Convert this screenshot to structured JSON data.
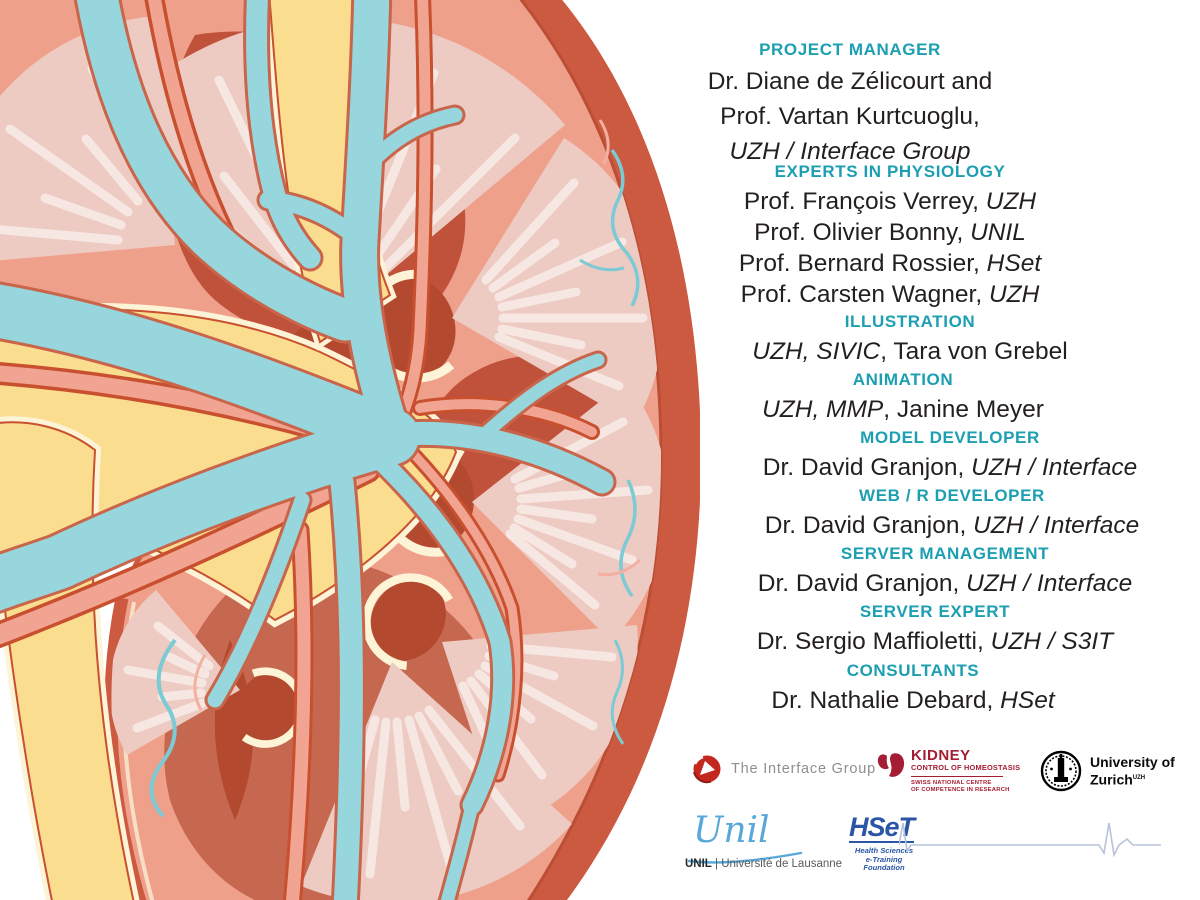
{
  "palette": {
    "heading_teal": "#1b9fb1",
    "body_text": "#231f20",
    "capsule_red": "#cb5a41",
    "cortex_salmon": "#efa08b",
    "pyramid_pink": "#edcbc3",
    "pelvis_yellow": "#fbdd90",
    "cream": "#fdf3d6",
    "vein_blue": "#96d6dc",
    "artery_salmon": "#f2a492",
    "artery_outline": "#c8502f",
    "nccr_crimson": "#a41d33",
    "hset_blue": "#2b55a5",
    "unil_blue": "#58a9d9"
  },
  "illustration": {
    "subject": "kidney-cross-section",
    "alt": "Anatomical illustration of a kidney in cross section with renal pelvis, pyramids, veins and arteries"
  },
  "credits": {
    "sections": [
      {
        "id": "project-manager",
        "heading": "PROJECT MANAGER",
        "lines": [
          [
            {
              "t": "Dr. Diane de Zélicourt and"
            }
          ],
          [
            {
              "t": "Prof. Vartan Kurtcuoglu,"
            }
          ],
          [
            {
              "t": "UZH / Interface Group",
              "i": true
            }
          ]
        ]
      },
      {
        "id": "experts-in-physiology",
        "heading": "EXPERTS IN PHYSIOLOGY",
        "lines": [
          [
            {
              "t": "Prof. François Verrey, "
            },
            {
              "t": "UZH",
              "i": true
            }
          ],
          [
            {
              "t": "Prof. Olivier Bonny, "
            },
            {
              "t": "UNIL",
              "i": true
            }
          ],
          [
            {
              "t": "Prof. Bernard Rossier, "
            },
            {
              "t": "HSet",
              "i": true
            }
          ],
          [
            {
              "t": "Prof. Carsten Wagner, "
            },
            {
              "t": "UZH",
              "i": true
            }
          ]
        ]
      },
      {
        "id": "illustration",
        "heading": "ILLUSTRATION",
        "lines": [
          [
            {
              "t": "UZH, SIVIC",
              "i": true
            },
            {
              "t": ", Tara von Grebel"
            }
          ]
        ]
      },
      {
        "id": "animation",
        "heading": "ANIMATION",
        "lines": [
          [
            {
              "t": "UZH, MMP",
              "i": true
            },
            {
              "t": ", Janine Meyer"
            }
          ]
        ]
      },
      {
        "id": "model-developer",
        "heading": "MODEL DEVELOPER",
        "lines": [
          [
            {
              "t": "Dr. David Granjon, "
            },
            {
              "t": "UZH / Interface",
              "i": true
            }
          ]
        ]
      },
      {
        "id": "web-r-developer",
        "heading": "WEB / R DEVELOPER",
        "lines": [
          [
            {
              "t": "Dr. David Granjon, "
            },
            {
              "t": "UZH / Interface",
              "i": true
            }
          ]
        ]
      },
      {
        "id": "server-management",
        "heading": "SERVER MANAGEMENT",
        "lines": [
          [
            {
              "t": "Dr. David Granjon, "
            },
            {
              "t": "UZH / Interface",
              "i": true
            }
          ]
        ]
      },
      {
        "id": "server-expert",
        "heading": "SERVER EXPERT",
        "lines": [
          [
            {
              "t": "Dr. Sergio Maffioletti, "
            },
            {
              "t": "UZH / S3IT",
              "i": true
            }
          ]
        ]
      },
      {
        "id": "consultants",
        "heading": "CONSULTANTS",
        "lines": [
          [
            {
              "t": "Dr. Nathalie Debard, "
            },
            {
              "t": "HSet",
              "i": true
            }
          ]
        ]
      }
    ]
  },
  "logos": {
    "interface": {
      "label": "The Interface Group"
    },
    "nccr": {
      "title": "KIDNEY",
      "subtitle": "CONTROL OF HOMEOSTASIS",
      "tagline1": "SWISS NATIONAL CENTRE",
      "tagline2": "OF COMPETENCE IN RESEARCH"
    },
    "uzh": {
      "line1": "University of",
      "line2": "Zurich",
      "sup": "UZH"
    },
    "unil": {
      "script": "Unil",
      "caption_name": "UNIL",
      "caption_rest": " | Université de Lausanne"
    },
    "hset": {
      "wordmark": "HSeT",
      "caption_line1": "Health Sciences",
      "caption_line2": "e-Training",
      "caption_line3": "Foundation"
    }
  }
}
